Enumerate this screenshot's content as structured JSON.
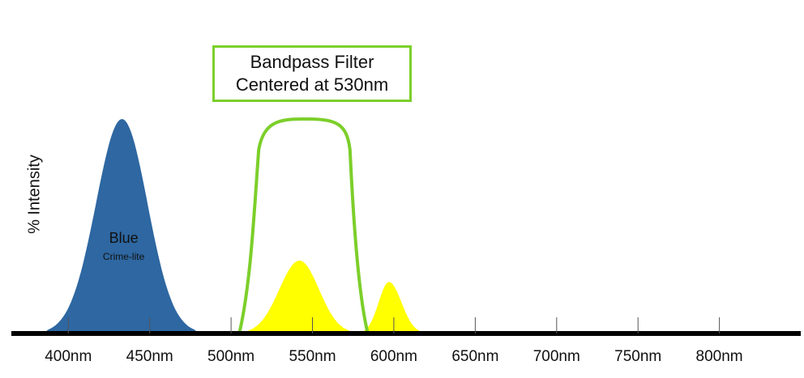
{
  "chart_data": {
    "type": "area",
    "ylabel": "% Intensity",
    "x_ticks": [
      "400nm",
      "450nm",
      "500nm",
      "550nm",
      "600nm",
      "650nm",
      "700nm",
      "750nm",
      "800nm"
    ],
    "x_tick_values": [
      400,
      450,
      500,
      550,
      600,
      650,
      700,
      750,
      800
    ],
    "xlim": [
      365,
      850
    ],
    "ylim": [
      0,
      100
    ],
    "callout": {
      "line1": "Bandpass Filter",
      "line2": "Centered at 530nm"
    },
    "series": [
      {
        "name": "Blue",
        "sublabel": "Crime-lite",
        "color": "#2e67a1",
        "shape": "peak",
        "center_nm": 433,
        "start_nm": 385,
        "end_nm": 480,
        "peak_intensity": 100
      },
      {
        "color": "#ffff00",
        "shape": "peak",
        "center_nm": 542,
        "start_nm": 505,
        "end_nm": 578,
        "peak_intensity": 34
      },
      {
        "color": "#ffff00",
        "shape": "peak",
        "center_nm": 597,
        "start_nm": 578,
        "end_nm": 620,
        "peak_intensity": 24
      },
      {
        "color": "#7ccf2a",
        "shape": "filter-outline",
        "start_nm": 505,
        "end_nm": 584,
        "peak_intensity": 100
      }
    ]
  },
  "colors": {
    "axis": "#000000",
    "filter": "#7ccf2a",
    "blue": "#2e67a1",
    "yellow": "#ffff00"
  }
}
